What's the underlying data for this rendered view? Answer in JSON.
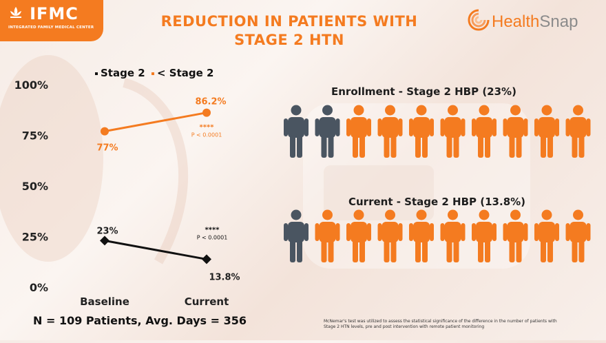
{
  "header": {
    "logo_left_text": "IFMC",
    "logo_left_subtitle": "INTEGRATED FAMILY MEDICAL CENTER",
    "title_line1": "REDUCTION IN PATIENTS WITH",
    "title_line2": "STAGE 2 HTN",
    "logo_right_part1": "Health",
    "logo_right_part2": "Snap"
  },
  "colors": {
    "orange": "#f47b20",
    "dark": "#111111",
    "person_dark": "#4a5561",
    "person_orange": "#f47b20"
  },
  "chart_data": {
    "type": "line",
    "categories": [
      "Baseline",
      "Current"
    ],
    "series": [
      {
        "name": "Stage 2",
        "values": [
          23,
          13.8
        ],
        "labels": [
          "23%",
          "13.8%"
        ],
        "color": "#111111",
        "marker": "diamond"
      },
      {
        "name": "< Stage 2",
        "values": [
          77,
          86.2
        ],
        "labels": [
          "77%",
          "86.2%"
        ],
        "color": "#f47b20",
        "marker": "circle"
      }
    ],
    "annotations": [
      {
        "series": "< Stage 2",
        "stars": "****",
        "text": "P < 0.0001"
      },
      {
        "series": "Stage 2",
        "stars": "****",
        "text": "P < 0.0001"
      }
    ],
    "yticks": [
      "0%",
      "25%",
      "50%",
      "75%",
      "100%"
    ],
    "ylim": [
      0,
      100
    ],
    "legend_position": "top",
    "grid": false
  },
  "pictograms": {
    "enrollment": {
      "title": "Enrollment - Stage 2 HBP (23%)",
      "total": 10,
      "highlighted": 2
    },
    "current": {
      "title": "Current - Stage 2 HBP (13.8%)",
      "total": 10,
      "highlighted": 1
    }
  },
  "footer": {
    "summary": "N = 109 Patients, Avg. Days = 356",
    "footnote_line1": "McNemar's test was utilized to assess the statistical significance of the difference in the number of patients with",
    "footnote_line2": "Stage 2 HTN levels, pre and post intervention with remote patient monitoring"
  }
}
